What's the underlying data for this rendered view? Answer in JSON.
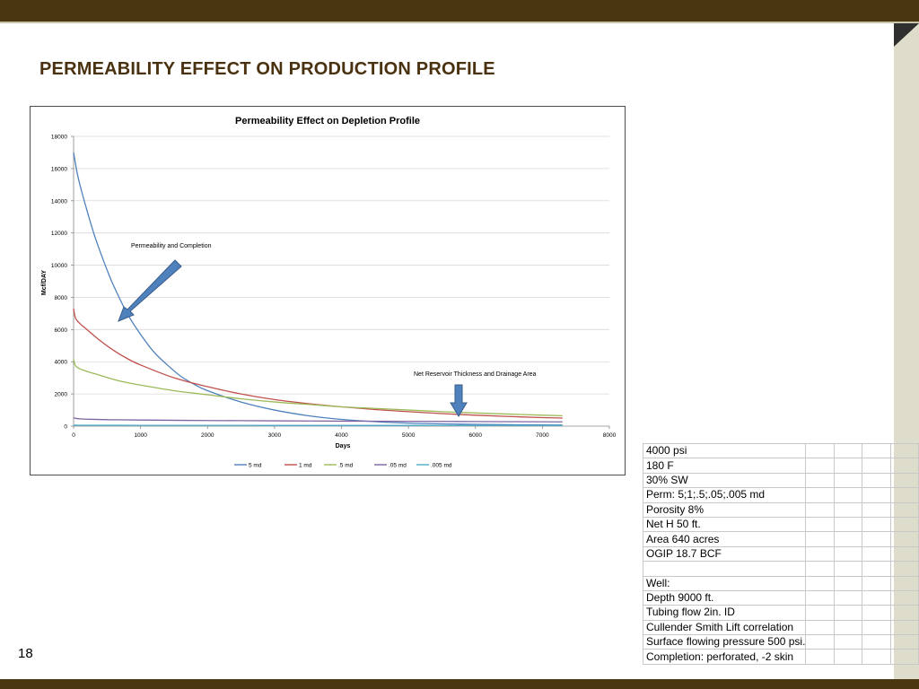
{
  "slide": {
    "title": "PERMEABILITY EFFECT ON PRODUCTION PROFILE",
    "page_number": "18",
    "colors": {
      "bars": "#4a3710",
      "side_strip": "#dedccb",
      "title": "#4a3210"
    }
  },
  "chart_data": {
    "type": "line",
    "title": "Permeability Effect on Depletion Profile",
    "xlabel": "Days",
    "ylabel": "Mcf/DAY",
    "xlim": [
      0,
      8000
    ],
    "ylim": [
      0,
      18000
    ],
    "x_ticks": [
      "0",
      "1000",
      "2000",
      "3000",
      "4000",
      "5000",
      "6000",
      "7000",
      "8000"
    ],
    "y_ticks": [
      "0",
      "2000",
      "4000",
      "6000",
      "8000",
      "10000",
      "12000",
      "14000",
      "16000",
      "18000"
    ],
    "grid": "horizontal",
    "legend_position": "bottom",
    "series": [
      {
        "name": "5 md",
        "color": "#4f81bd",
        "x": [
          0,
          50,
          100,
          200,
          300,
          400,
          500,
          600,
          800,
          1000,
          1200,
          1400,
          1600,
          1800,
          2000,
          2500,
          3000,
          3500,
          4000,
          4500,
          5000,
          5500,
          6000,
          6500,
          7000,
          7300
        ],
        "y": [
          17000,
          15800,
          14900,
          13400,
          12000,
          10800,
          9700,
          8700,
          7000,
          5700,
          4600,
          3800,
          3100,
          2600,
          2200,
          1500,
          1000,
          650,
          420,
          280,
          190,
          140,
          110,
          90,
          75,
          70
        ]
      },
      {
        "name": "1 md",
        "color": "#c0504d",
        "x": [
          0,
          30,
          100,
          200,
          400,
          600,
          800,
          1000,
          1500,
          2000,
          2500,
          3000,
          3500,
          4000,
          4500,
          5000,
          5500,
          6000,
          6500,
          7000,
          7300
        ],
        "y": [
          7300,
          6700,
          6350,
          6000,
          5300,
          4700,
          4200,
          3800,
          3000,
          2450,
          2000,
          1650,
          1400,
          1200,
          1030,
          900,
          780,
          680,
          600,
          530,
          500
        ]
      },
      {
        "name": ".5 md",
        "color": "#9bbb59",
        "x": [
          0,
          30,
          100,
          200,
          400,
          600,
          800,
          1000,
          1500,
          2000,
          2500,
          3000,
          3500,
          4000,
          4500,
          5000,
          5500,
          6000,
          6500,
          7000,
          7300
        ],
        "y": [
          4150,
          3750,
          3550,
          3400,
          3150,
          2900,
          2700,
          2550,
          2200,
          1950,
          1700,
          1500,
          1350,
          1200,
          1100,
          1000,
          900,
          820,
          750,
          680,
          650
        ]
      },
      {
        "name": ".05 md",
        "color": "#8064a2",
        "x": [
          0,
          50,
          100,
          200,
          500,
          1000,
          2000,
          3000,
          4000,
          5000,
          6000,
          7000,
          7300
        ],
        "y": [
          520,
          470,
          450,
          430,
          400,
          380,
          350,
          330,
          310,
          300,
          285,
          270,
          265
        ]
      },
      {
        "name": ".005 md",
        "color": "#4bacc6",
        "x": [
          0,
          100,
          500,
          1000,
          2000,
          3000,
          4000,
          5000,
          6000,
          7000,
          7300
        ],
        "y": [
          60,
          55,
          52,
          50,
          48,
          46,
          45,
          44,
          43,
          42,
          42
        ]
      }
    ],
    "annotations": [
      {
        "text": "Permeability   and Completion"
      },
      {
        "text": "Net Reservoir Thickness  and Drainage Area"
      }
    ]
  },
  "info_table": {
    "rows": [
      "4000 psi",
      "180 F",
      "30% SW",
      "Perm:  5;1;.5;.05;.005 md",
      "Porosity  8%",
      "Net H   50 ft.",
      "Area  640 acres",
      "OGIP  18.7 BCF",
      "",
      "Well:",
      "Depth  9000 ft.",
      "Tubing flow   2in. ID",
      "Cullender Smith Lift correlation",
      "Surface flowing pressure 500 psi.",
      "Completion: perforated, -2 skin"
    ]
  }
}
